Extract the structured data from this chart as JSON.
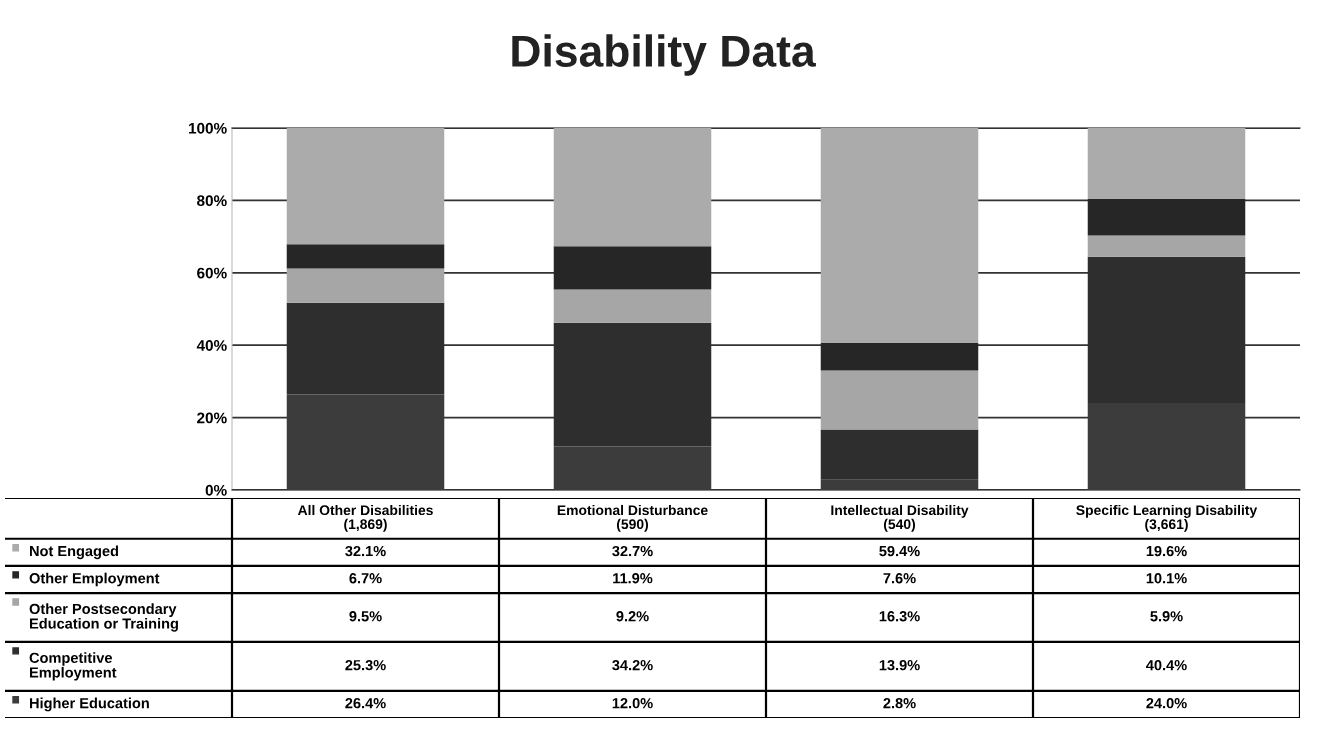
{
  "chart_data": {
    "type": "bar",
    "title": "Disability Data",
    "stacked": true,
    "grid": "y",
    "legend": "bottom",
    "categories": [
      "All Other Disabilities\n(1,869)",
      "Emotional Disturbance\n(590)",
      "Intellectual Disability\n(540)",
      "Specific Learning Disability\n(3,661)"
    ],
    "ylim": [
      0,
      100
    ],
    "yticks": [
      {
        "value": 0,
        "label": "0%"
      },
      {
        "value": 20,
        "label": "20%"
      },
      {
        "value": 40,
        "label": "40%"
      },
      {
        "value": 60,
        "label": "60%"
      },
      {
        "value": 80,
        "label": "80%"
      },
      {
        "value": 100,
        "label": "100%"
      }
    ],
    "series": [
      {
        "name": "Higher Education",
        "color": "#3c3c3c",
        "values": [
          26.4,
          12.0,
          2.8,
          24.0
        ],
        "value_labels": [
          "26.4%",
          "12.0%",
          "2.8%",
          "24.0%"
        ]
      },
      {
        "name": "Competitive\nEmployment",
        "color": "#2e2e2e",
        "values": [
          25.3,
          34.2,
          13.9,
          40.4
        ],
        "value_labels": [
          "25.3%",
          "34.2%",
          "13.9%",
          "40.4%"
        ]
      },
      {
        "name": "Other Postsecondary\nEducation or Training",
        "color": "#a6a6a6",
        "values": [
          9.5,
          9.2,
          16.3,
          5.9
        ],
        "value_labels": [
          "9.5%",
          "9.2%",
          "16.3%",
          "5.9%"
        ]
      },
      {
        "name": "Other Employment",
        "color": "#262626",
        "values": [
          6.7,
          11.9,
          7.6,
          10.1
        ],
        "value_labels": [
          "6.7%",
          "11.9%",
          "7.6%",
          "10.1%"
        ]
      },
      {
        "name": "Not Engaged",
        "color": "#ababab",
        "values": [
          32.1,
          32.7,
          59.4,
          19.6
        ],
        "value_labels": [
          "32.1%",
          "32.7%",
          "59.4%",
          "19.6%"
        ]
      }
    ]
  }
}
